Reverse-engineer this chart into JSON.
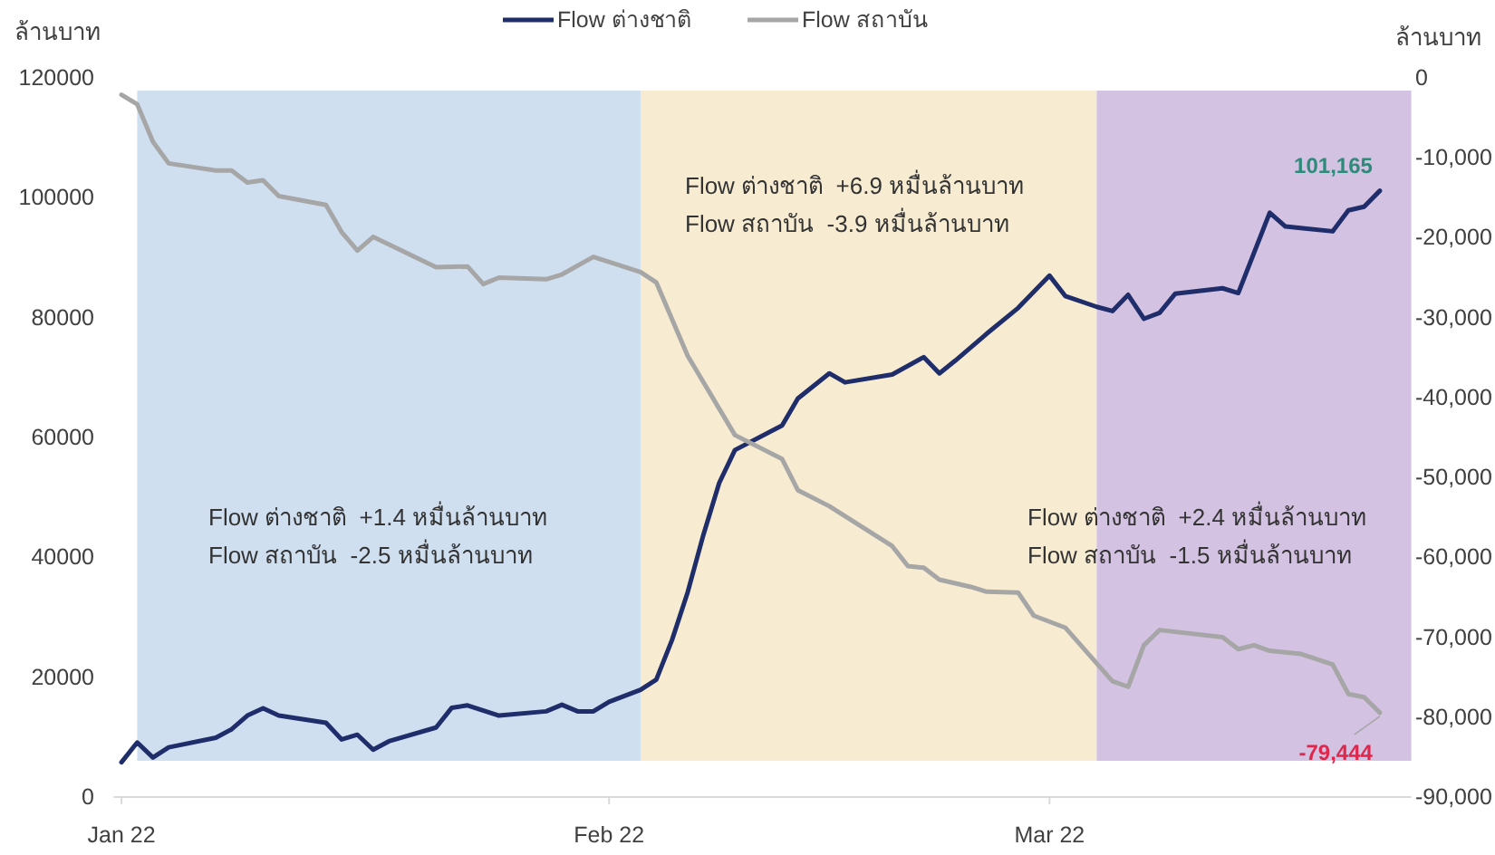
{
  "chart_data": {
    "type": "line",
    "ylabel": "ล้านบาท",
    "y2label": "ล้านบาท",
    "xlim": [
      "2021-12-31T12:00",
      "2022-03-24"
    ],
    "xticks": [
      {
        "value": "2022-01-01",
        "label": "Jan 22"
      },
      {
        "value": "2022-02-01",
        "label": "Feb 22"
      },
      {
        "value": "2022-03-01",
        "label": "Mar 22"
      }
    ],
    "ylim": [
      0,
      120000
    ],
    "yticks": [
      0,
      20000,
      40000,
      60000,
      80000,
      100000,
      120000
    ],
    "y2lim": [
      -90000,
      0
    ],
    "y2ticks": [
      {
        "value": -90000,
        "label": "-90,000"
      },
      {
        "value": -80000,
        "label": "-80,000"
      },
      {
        "value": -70000,
        "label": "-70,000"
      },
      {
        "value": -60000,
        "label": "-60,000"
      },
      {
        "value": -50000,
        "label": "-50,000"
      },
      {
        "value": -40000,
        "label": "-40,000"
      },
      {
        "value": -30000,
        "label": "-30,000"
      },
      {
        "value": -20000,
        "label": "-20,000"
      },
      {
        "value": -10000,
        "label": "-10,000"
      },
      0
    ],
    "legend": "top",
    "line_style": "solid",
    "marker": "none",
    "bands": [
      {
        "axis": "x",
        "from": "2022-01-02",
        "to": "2022-02-03",
        "color": "#cfdff0",
        "label": "Flow ต่างชาติ  +1.4 หมื่นล้านบาท\nFlow สถาบัน  -2.5 หมื่นล้านบาท"
      },
      {
        "axis": "x",
        "from": "2022-02-03",
        "to": "2022-03-04",
        "color": "#f7ecd2",
        "label": "Flow ต่างชาติ  +6.9 หมื่นล้านบาท\nFlow สถาบัน  -3.9 หมื่นล้านบาท"
      },
      {
        "axis": "x",
        "from": "2022-03-04",
        "to": "2022-03-24",
        "color": "#d3c2e1",
        "label": "Flow ต่างชาติ  +2.4 หมื่นล้านบาท\nFlow สถาบัน  -1.5 หมื่นล้านบาท"
      }
    ],
    "series": [
      {
        "name": "Flow ต่างชาติ",
        "color": "#1f2d6b",
        "x": [
          "2022-01-01",
          "2022-01-02",
          "2022-01-03",
          "2022-01-04",
          "2022-01-07",
          "2022-01-08",
          "2022-01-09",
          "2022-01-10",
          "2022-01-11",
          "2022-01-14",
          "2022-01-15",
          "2022-01-16",
          "2022-01-17",
          "2022-01-18",
          "2022-01-21",
          "2022-01-22",
          "2022-01-23",
          "2022-01-25",
          "2022-01-28",
          "2022-01-29",
          "2022-01-30",
          "2022-01-31",
          "2022-02-01",
          "2022-02-03",
          "2022-02-04",
          "2022-02-05",
          "2022-02-06",
          "2022-02-07",
          "2022-02-08",
          "2022-02-09",
          "2022-02-12",
          "2022-02-13",
          "2022-02-15",
          "2022-02-16",
          "2022-02-19",
          "2022-02-21",
          "2022-02-22",
          "2022-02-23",
          "2022-02-25",
          "2022-02-27",
          "2022-03-01",
          "2022-03-02",
          "2022-03-04",
          "2022-03-05",
          "2022-03-06",
          "2022-03-07",
          "2022-03-08",
          "2022-03-09",
          "2022-03-12",
          "2022-03-13",
          "2022-03-15",
          "2022-03-16",
          "2022-03-19",
          "2022-03-20",
          "2022-03-21",
          "2022-03-22"
        ],
        "values": [
          5800,
          9100,
          6600,
          8300,
          9900,
          11300,
          13600,
          14800,
          13600,
          12400,
          9600,
          10400,
          7900,
          9300,
          11600,
          14900,
          15300,
          13600,
          14300,
          15400,
          14300,
          14300,
          15900,
          17900,
          19600,
          26200,
          34200,
          43800,
          52400,
          57900,
          62000,
          66500,
          70700,
          69200,
          70500,
          73400,
          70700,
          72800,
          77300,
          81600,
          87000,
          83600,
          81800,
          81100,
          83800,
          79800,
          80800,
          84000,
          84900,
          84100,
          97500,
          95200,
          94400,
          97900,
          98500,
          101165
        ],
        "value_labels": [
          null,
          null,
          null,
          null,
          null,
          null,
          null,
          null,
          null,
          null,
          null,
          null,
          null,
          null,
          null,
          null,
          null,
          null,
          null,
          null,
          null,
          null,
          null,
          null,
          null,
          null,
          null,
          null,
          null,
          null,
          null,
          null,
          null,
          null,
          null,
          null,
          null,
          null,
          null,
          null,
          null,
          null,
          null,
          null,
          null,
          null,
          null,
          null,
          null,
          null,
          null,
          null,
          null,
          null,
          null,
          "101,165"
        ]
      },
      {
        "name": "Flow สถาบัน",
        "color": "#a6a6a6",
        "axis": "y2",
        "x": [
          "2022-01-01",
          "2022-01-02",
          "2022-01-03",
          "2022-01-04",
          "2022-01-07",
          "2022-01-08",
          "2022-01-09",
          "2022-01-10",
          "2022-01-11",
          "2022-01-14",
          "2022-01-15",
          "2022-01-16",
          "2022-01-17",
          "2022-01-21",
          "2022-01-23",
          "2022-01-24",
          "2022-01-25",
          "2022-01-28",
          "2022-01-29",
          "2022-01-31",
          "2022-02-03",
          "2022-02-04",
          "2022-02-06",
          "2022-02-09",
          "2022-02-12",
          "2022-02-13",
          "2022-02-15",
          "2022-02-19",
          "2022-02-20",
          "2022-02-21",
          "2022-02-22",
          "2022-02-24",
          "2022-02-25",
          "2022-02-27",
          "2022-02-28",
          "2022-03-02",
          "2022-03-05",
          "2022-03-06",
          "2022-03-07",
          "2022-03-08",
          "2022-03-12",
          "2022-03-13",
          "2022-03-14",
          "2022-03-15",
          "2022-03-17",
          "2022-03-19",
          "2022-03-20",
          "2022-03-21",
          "2022-03-22"
        ],
        "values": [
          -2100,
          -3300,
          -8000,
          -10700,
          -11600,
          -11600,
          -13100,
          -12800,
          -14800,
          -15900,
          -19300,
          -21600,
          -19900,
          -23700,
          -23600,
          -25800,
          -25000,
          -25200,
          -24600,
          -22400,
          -24300,
          -25600,
          -34800,
          -44700,
          -47700,
          -51600,
          -53600,
          -58600,
          -61100,
          -61300,
          -62800,
          -63700,
          -64300,
          -64400,
          -67300,
          -68800,
          -75500,
          -76200,
          -71000,
          -69100,
          -70000,
          -71500,
          -71000,
          -71700,
          -72100,
          -73400,
          -77100,
          -77500,
          -79444
        ],
        "value_labels": [
          null,
          null,
          null,
          null,
          null,
          null,
          null,
          null,
          null,
          null,
          null,
          null,
          null,
          null,
          null,
          null,
          null,
          null,
          null,
          null,
          null,
          null,
          null,
          null,
          null,
          null,
          null,
          null,
          null,
          null,
          null,
          null,
          null,
          null,
          null,
          null,
          null,
          null,
          null,
          null,
          null,
          null,
          null,
          null,
          null,
          null,
          null,
          null,
          "-79,444"
        ]
      }
    ]
  }
}
